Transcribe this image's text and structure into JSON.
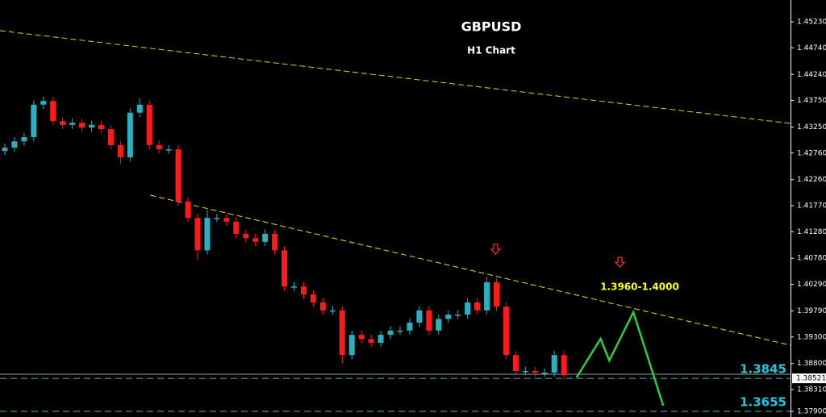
{
  "chart_data": {
    "type": "candlestick",
    "title": "GBPUSD",
    "subtitle": "H1 Chart",
    "up_color": "#2ab0c0",
    "down_color": "#ff1a1a",
    "xlim": [
      0,
      82
    ],
    "ylim": [
      1.37794,
      1.4564
    ],
    "yticks": [
      {
        "value": 1.4523,
        "label": "1.45230"
      },
      {
        "value": 1.4474,
        "label": "1.44740"
      },
      {
        "value": 1.4424,
        "label": "1.44240"
      },
      {
        "value": 1.4375,
        "label": "1.43750"
      },
      {
        "value": 1.4325,
        "label": "1.43250"
      },
      {
        "value": 1.4276,
        "label": "1.42760"
      },
      {
        "value": 1.4226,
        "label": "1.42260"
      },
      {
        "value": 1.4177,
        "label": "1.41770"
      },
      {
        "value": 1.4128,
        "label": "1.41280"
      },
      {
        "value": 1.4078,
        "label": "1.40780"
      },
      {
        "value": 1.4029,
        "label": "1.40290"
      },
      {
        "value": 1.3979,
        "label": "1.39790"
      },
      {
        "value": 1.393,
        "label": "1.39300"
      },
      {
        "value": 1.388,
        "label": "1.38800"
      },
      {
        "value": 1.3831,
        "label": "1.38310"
      },
      {
        "value": 1.379,
        "label": "1.37900"
      }
    ],
    "current_price": 1.38521,
    "open": [
      1.428,
      1.4286,
      1.4298,
      1.4306,
      1.4367,
      1.4374,
      1.4336,
      1.4329,
      1.4333,
      1.4324,
      1.4329,
      1.4321,
      1.4291,
      1.4268,
      1.4352,
      1.4367,
      1.4291,
      1.4283,
      1.4283,
      1.4185,
      1.4154,
      1.4093,
      1.4154,
      1.4154,
      1.4147,
      1.4124,
      1.4116,
      1.4109,
      1.4124,
      1.4093,
      1.4025,
      1.4025,
      1.401,
      1.3995,
      1.398,
      1.398,
      1.3896,
      1.3934,
      1.3926,
      1.3919,
      1.3934,
      1.3942,
      1.3942,
      1.3957,
      1.398,
      1.3942,
      1.3964,
      1.3972,
      1.3972,
      1.3995,
      1.398,
      1.4033,
      1.3987,
      1.3896,
      1.3866,
      1.3866,
      1.3863,
      1.3863,
      1.3896
    ],
    "high": [
      1.4294,
      1.4306,
      1.4314,
      1.4375,
      1.4382,
      1.4382,
      1.4344,
      1.4341,
      1.4341,
      1.4337,
      1.4337,
      1.4329,
      1.4299,
      1.436,
      1.438,
      1.4375,
      1.4299,
      1.4291,
      1.4291,
      1.4193,
      1.4162,
      1.417,
      1.4162,
      1.4162,
      1.4155,
      1.4132,
      1.4124,
      1.4132,
      1.4132,
      1.4101,
      1.4033,
      1.4033,
      1.4018,
      1.4003,
      1.3988,
      1.3988,
      1.3942,
      1.3942,
      1.3934,
      1.3942,
      1.395,
      1.395,
      1.3965,
      1.3988,
      1.3988,
      1.3972,
      1.398,
      1.398,
      1.4003,
      1.4003,
      1.4043,
      1.4041,
      1.3995,
      1.3904,
      1.3874,
      1.3874,
      1.3871,
      1.3904,
      1.3904
    ],
    "low": [
      1.4272,
      1.4278,
      1.429,
      1.4298,
      1.4359,
      1.4328,
      1.4321,
      1.4321,
      1.4316,
      1.4316,
      1.4313,
      1.4283,
      1.4255,
      1.426,
      1.4344,
      1.4283,
      1.4275,
      1.4275,
      1.4177,
      1.4146,
      1.4075,
      1.4085,
      1.4146,
      1.4139,
      1.4116,
      1.4108,
      1.4101,
      1.4101,
      1.4085,
      1.4017,
      1.4017,
      1.4002,
      1.3987,
      1.3972,
      1.3972,
      1.388,
      1.3888,
      1.3918,
      1.3911,
      1.3911,
      1.3926,
      1.3934,
      1.3934,
      1.3949,
      1.3934,
      1.3934,
      1.3956,
      1.3964,
      1.3964,
      1.3972,
      1.3972,
      1.3979,
      1.3888,
      1.3858,
      1.3858,
      1.3855,
      1.3855,
      1.3855,
      1.385
    ],
    "close": [
      1.4286,
      1.4298,
      1.4306,
      1.4367,
      1.4374,
      1.4336,
      1.4329,
      1.4333,
      1.4324,
      1.4329,
      1.4321,
      1.4291,
      1.4268,
      1.4352,
      1.4367,
      1.4291,
      1.4283,
      1.4283,
      1.4185,
      1.4154,
      1.4093,
      1.4154,
      1.4154,
      1.4147,
      1.4124,
      1.4116,
      1.4109,
      1.4124,
      1.4093,
      1.4025,
      1.4025,
      1.401,
      1.3995,
      1.398,
      1.398,
      1.3896,
      1.3934,
      1.3926,
      1.3919,
      1.3934,
      1.3942,
      1.3942,
      1.3957,
      1.398,
      1.3942,
      1.3964,
      1.3972,
      1.3972,
      1.3995,
      1.398,
      1.4033,
      1.3987,
      1.3896,
      1.3866,
      1.3866,
      1.3863,
      1.3863,
      1.3896,
      1.3858
    ],
    "hlines": [
      {
        "value": 1.38598,
        "color": "#9aa0a6",
        "dash": false
      },
      {
        "value": 1.38521,
        "color": "#4fb0c0",
        "dash": true
      },
      {
        "value": 1.379,
        "color": "#4fb0c0",
        "dash": true
      }
    ],
    "trendlines": [
      {
        "color": "#d8d820",
        "x": [
          0,
          82
        ],
        "y": [
          1.45063,
          1.43318
        ]
      },
      {
        "color": "#e6e600",
        "x": [
          15.6,
          82
        ],
        "y": [
          1.41967,
          1.39144
        ]
      }
    ],
    "projection": {
      "color": "#2ecc40",
      "x": [
        59.8,
        62.3,
        63.2,
        65.7,
        68.8
      ],
      "y": [
        1.38537,
        1.39266,
        1.38856,
        1.39766,
        1.38006
      ]
    },
    "arrows": {
      "color": "#ff2a2a",
      "x": [
        51.4,
        64.3
      ],
      "y": [
        1.40935,
        1.40692
      ]
    },
    "annotations": [
      "1.3960-1.4000",
      "1.3845",
      "1.3655"
    ]
  }
}
